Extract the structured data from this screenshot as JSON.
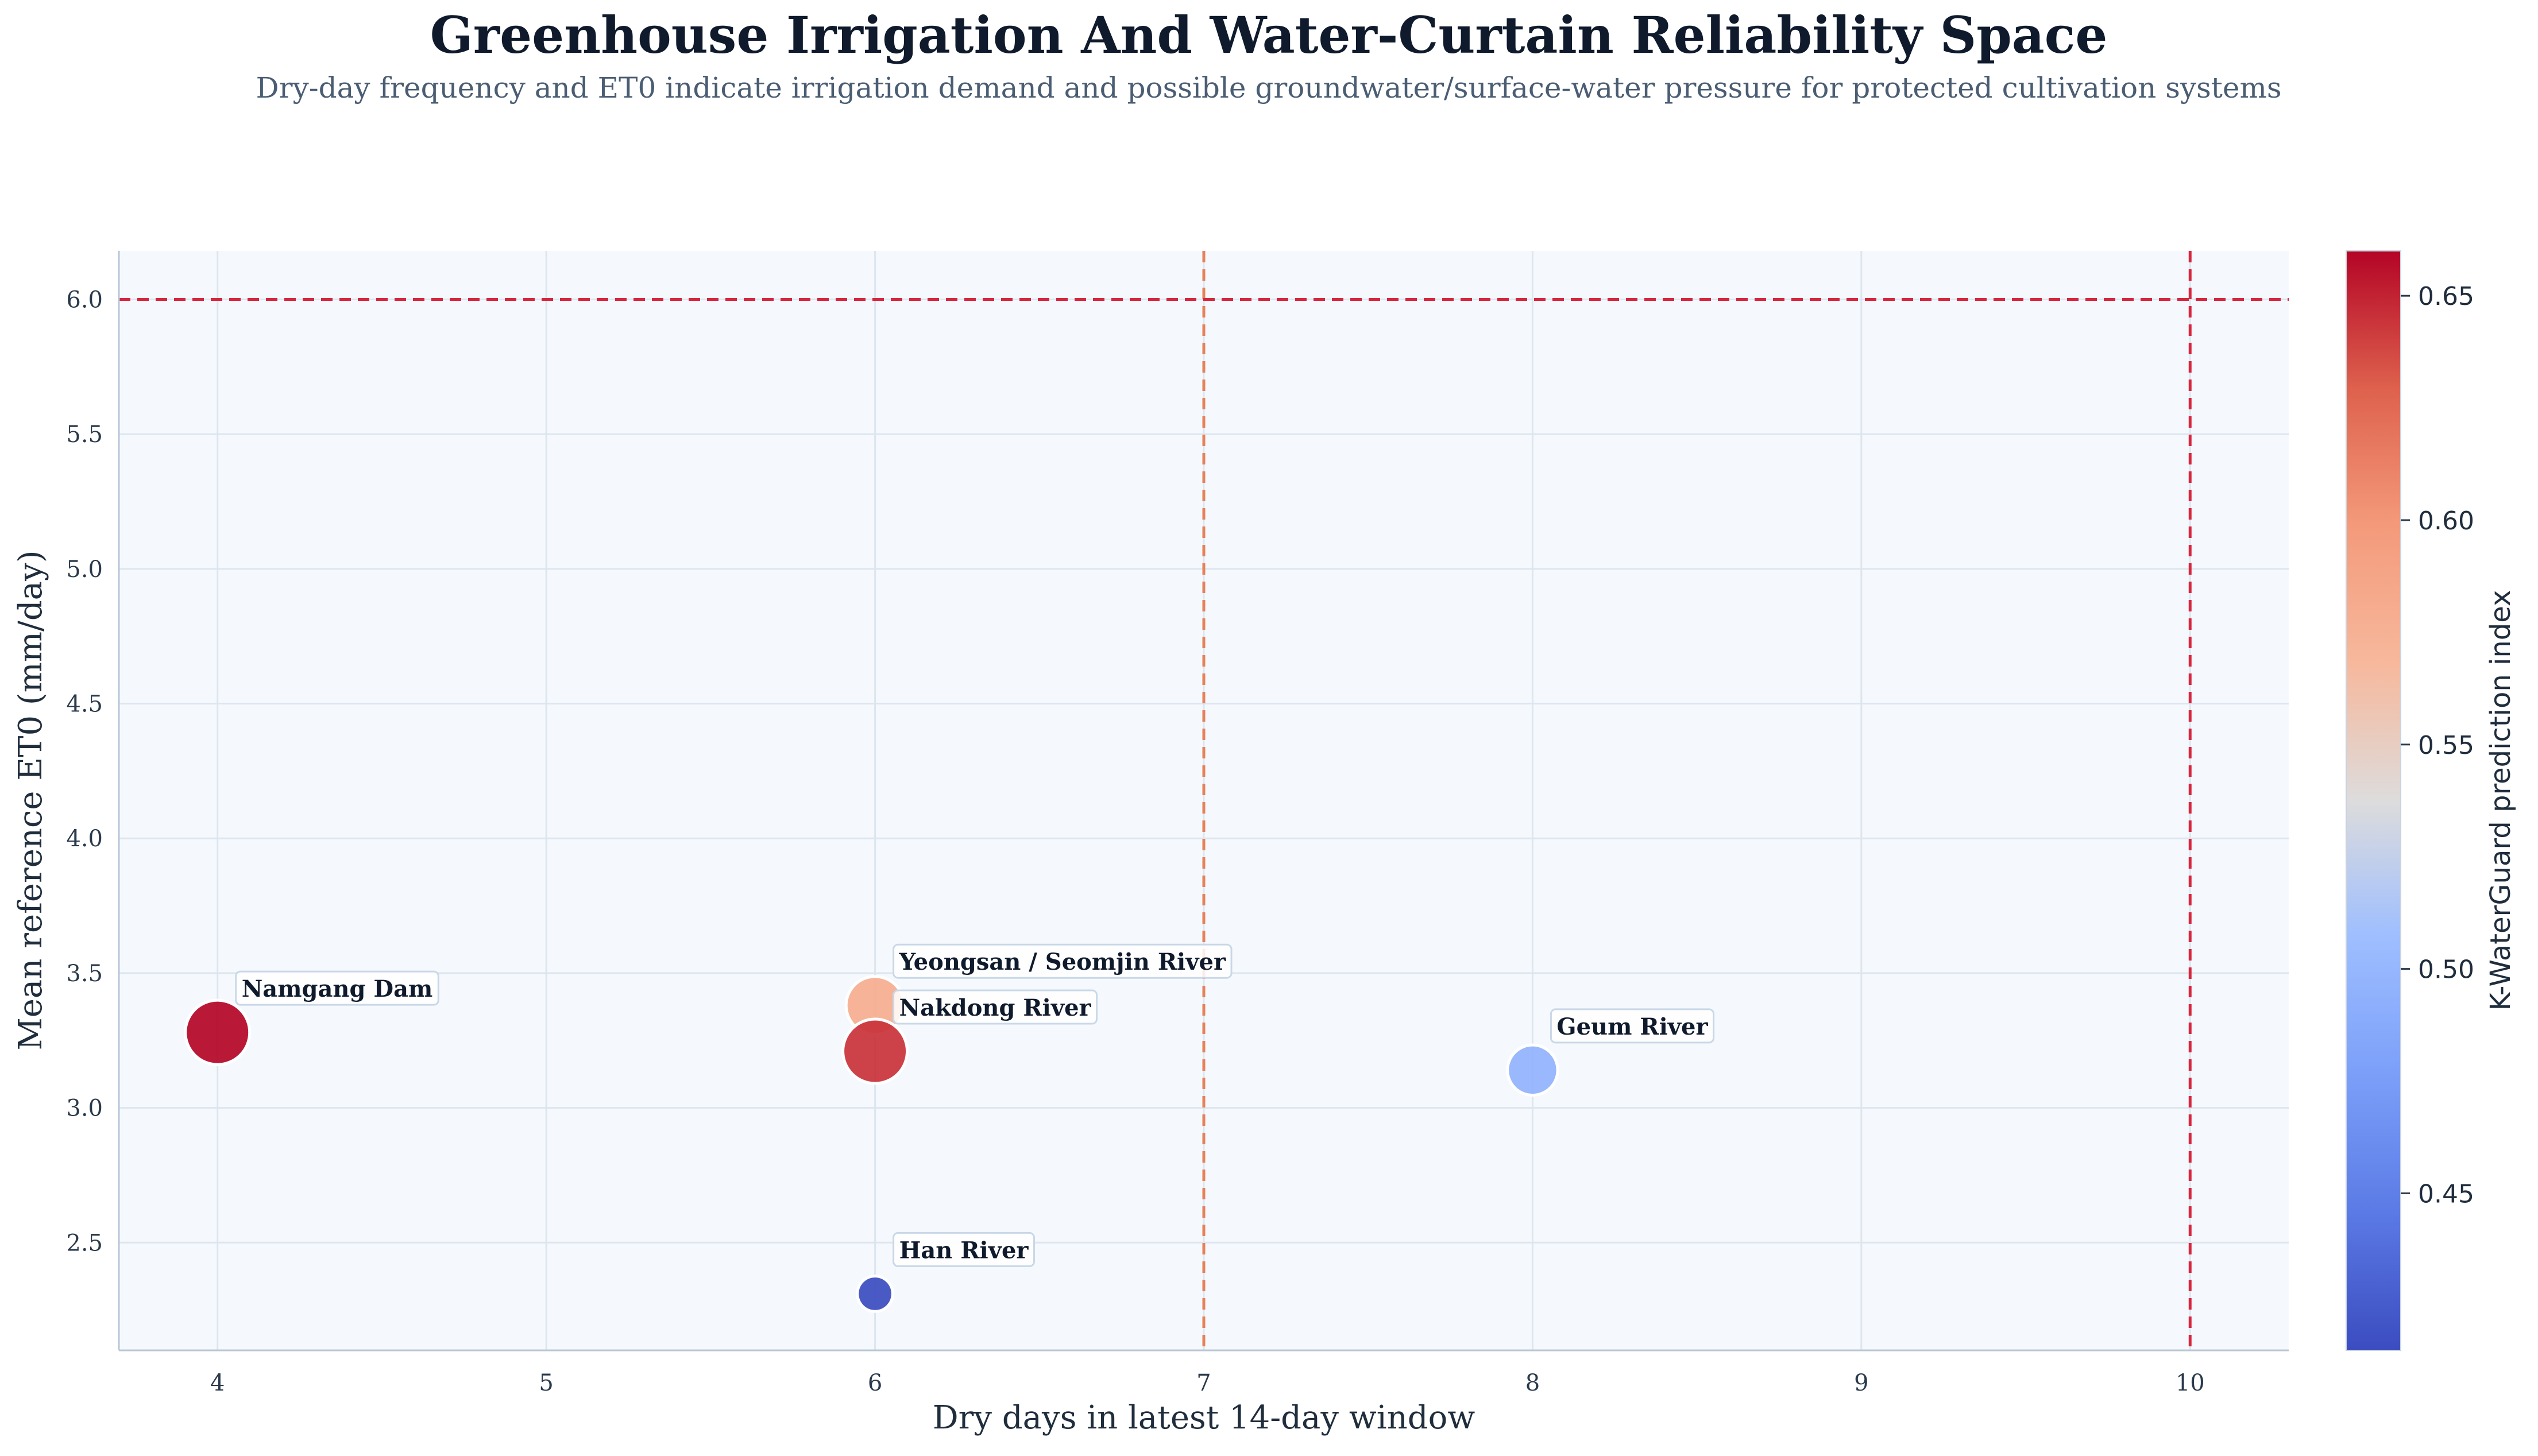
{
  "chart_data": {
    "type": "scatter",
    "title": "Greenhouse Irrigation And Water-Curtain Reliability Space",
    "subtitle": "Dry-day frequency and ET0 indicate irrigation demand and possible groundwater/surface-water pressure for protected cultivation systems",
    "xlabel": "Dry days in latest 14-day window",
    "ylabel": "Mean reference ET0 (mm/day)",
    "xlim": [
      3.7,
      10.3
    ],
    "ylim": [
      2.1,
      6.18
    ],
    "xticks": [
      4,
      5,
      6,
      7,
      8,
      9,
      10
    ],
    "yticks": [
      2.5,
      3.0,
      3.5,
      4.0,
      4.5,
      5.0,
      5.5,
      6.0
    ],
    "grid": true,
    "reference_lines": [
      {
        "axis": "x",
        "value": 7,
        "color": "#e8805a"
      },
      {
        "axis": "x",
        "value": 10,
        "color": "#d7263d"
      },
      {
        "axis": "y",
        "value": 6.0,
        "color": "#d7263d"
      }
    ],
    "colorbar": {
      "label": "K-WaterGuard prediction index",
      "min": 0.415,
      "max": 0.66,
      "ticks": [
        0.45,
        0.5,
        0.55,
        0.6,
        0.65
      ],
      "colormap": "coolwarm"
    },
    "points": [
      {
        "label": "Namgang Dam",
        "x": 4,
        "y": 3.28,
        "index": 0.66,
        "size": 1.0
      },
      {
        "label": "Yeongsan / Seomjin River",
        "x": 6,
        "y": 3.38,
        "index": 0.58,
        "size": 0.9
      },
      {
        "label": "Nakdong River",
        "x": 6,
        "y": 3.21,
        "index": 0.645,
        "size": 1.0
      },
      {
        "label": "Geum River",
        "x": 8,
        "y": 3.14,
        "index": 0.495,
        "size": 0.78
      },
      {
        "label": "Han River",
        "x": 6,
        "y": 2.31,
        "index": 0.415,
        "size": 0.55
      }
    ]
  }
}
